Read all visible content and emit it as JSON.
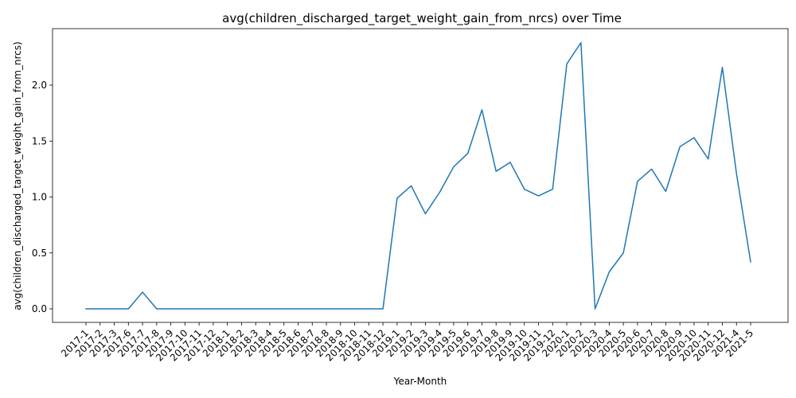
{
  "chart_data": {
    "type": "line",
    "title": "avg(children_discharged_target_weight_gain_from_nrcs) over Time",
    "xlabel": "Year-Month",
    "ylabel": "avg(children_discharged_target_weight_gain_from_nrcs)",
    "x": [
      "2017-1",
      "2017-2",
      "2017-3",
      "2017-6",
      "2017-7",
      "2017-8",
      "2017-9",
      "2017-10",
      "2017-11",
      "2017-12",
      "2018-1",
      "2018-2",
      "2018-3",
      "2018-4",
      "2018-5",
      "2018-6",
      "2018-7",
      "2018-8",
      "2018-9",
      "2018-10",
      "2018-11",
      "2018-12",
      "2019-1",
      "2019-2",
      "2019-3",
      "2019-4",
      "2019-5",
      "2019-6",
      "2019-7",
      "2019-8",
      "2019-9",
      "2019-10",
      "2019-11",
      "2019-12",
      "2020-1",
      "2020-2",
      "2020-3",
      "2020-4",
      "2020-5",
      "2020-6",
      "2020-7",
      "2020-8",
      "2020-9",
      "2020-10",
      "2020-11",
      "2020-12",
      "2021-4",
      "2021-5"
    ],
    "y": [
      0,
      0,
      0,
      0,
      0.15,
      0,
      0,
      0,
      0,
      0,
      0,
      0,
      0,
      0,
      0,
      0,
      0,
      0,
      0,
      0,
      0,
      0,
      0.99,
      1.1,
      0.85,
      1.04,
      1.27,
      1.39,
      1.78,
      1.23,
      1.31,
      1.07,
      1.01,
      1.07,
      2.19,
      2.38,
      0,
      0.33,
      0.5,
      1.14,
      1.25,
      1.05,
      1.45,
      1.53,
      1.34,
      2.16,
      1.21,
      0.42
    ],
    "yticks": [
      0.0,
      0.5,
      1.0,
      1.5,
      2.0
    ],
    "ylim": [
      -0.12,
      2.5
    ],
    "grid": false,
    "color": "#1f77b4"
  }
}
